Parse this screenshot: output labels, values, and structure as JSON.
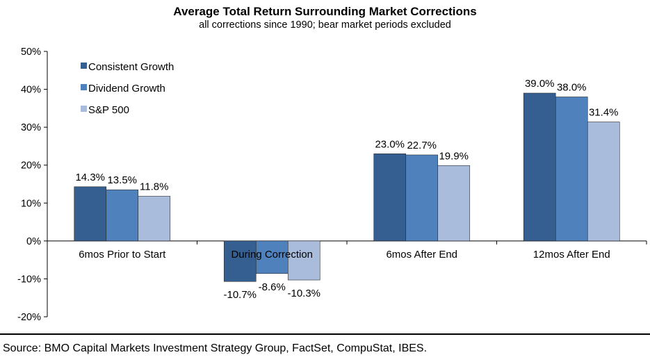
{
  "chart_data": {
    "type": "bar",
    "title": "Average Total Return Surrounding Market Corrections",
    "subtitle": "all corrections since 1990; bear market periods excluded",
    "categories": [
      "6mos Prior to Start",
      "During Correction",
      "6mos After End",
      "12mos After End"
    ],
    "series": [
      {
        "name": "Consistent Growth",
        "color": "#355f91",
        "values": [
          14.3,
          -10.7,
          23.0,
          39.0
        ],
        "labels": [
          "14.3%",
          "-10.7%",
          "23.0%",
          "39.0%"
        ]
      },
      {
        "name": "Dividend Growth",
        "color": "#4f81bd",
        "values": [
          13.5,
          -8.6,
          22.7,
          38.0
        ],
        "labels": [
          "13.5%",
          "-8.6%",
          "22.7%",
          "38.0%"
        ]
      },
      {
        "name": "S&P 500",
        "color": "#a9bcdb",
        "values": [
          11.8,
          -10.3,
          19.9,
          31.4
        ],
        "labels": [
          "11.8%",
          "-10.3%",
          "19.9%",
          "31.4%"
        ]
      }
    ],
    "ylim": [
      -20,
      50
    ],
    "yticks": [
      -20,
      -10,
      0,
      10,
      20,
      30,
      40,
      50
    ],
    "ytick_labels": [
      "-20%",
      "-10%",
      "0%",
      "10%",
      "20%",
      "30%",
      "40%",
      "50%"
    ],
    "xlabel": "",
    "ylabel": "",
    "grid": false,
    "legend_position": "top-left"
  },
  "source": "Source: BMO Capital Markets Investment Strategy Group, FactSet, CompuStat, IBES."
}
